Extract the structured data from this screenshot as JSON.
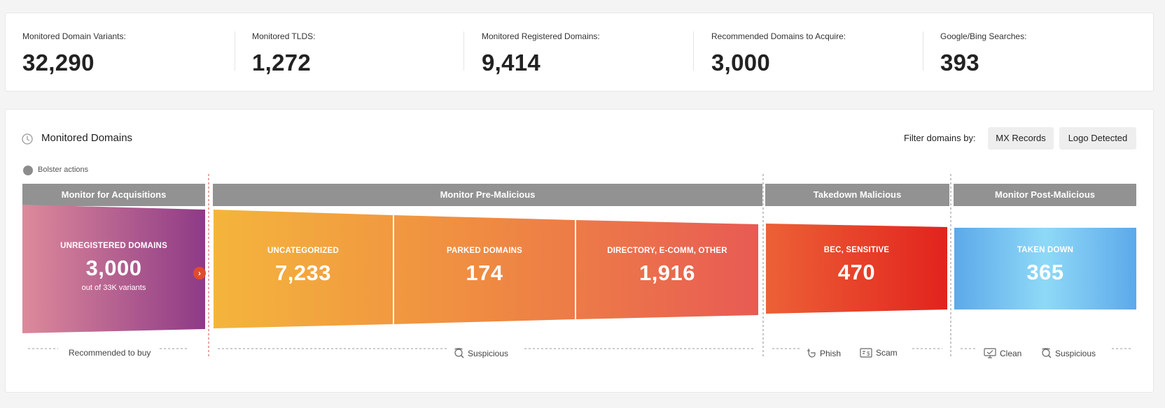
{
  "stats": [
    {
      "label": "Monitored Domain Variants:",
      "value": "32,290"
    },
    {
      "label": "Monitored TLDS:",
      "value": "1,272"
    },
    {
      "label": "Monitored Registered Domains:",
      "value": "9,414"
    },
    {
      "label": "Recommended Domains to Acquire:",
      "value": "3,000"
    },
    {
      "label": "Google/Bing Searches:",
      "value": "393"
    }
  ],
  "panel": {
    "title": "Monitored Domains",
    "filter_label": "Filter domains by:",
    "filters": [
      "MX Records",
      "Logo Detected"
    ],
    "legend_label": "Bolster actions"
  },
  "stages": [
    "Monitor for Acquisitions",
    "Monitor Pre-Malicious",
    "Takedown Malicious",
    "Monitor Post-Malicious"
  ],
  "segments": [
    {
      "label": "UNREGISTERED DOMAINS",
      "value": "3,000",
      "sub": "out of 33K variants"
    },
    {
      "label": "UNCATEGORIZED",
      "value": "7,233"
    },
    {
      "label": "PARKED DOMAINS",
      "value": "174"
    },
    {
      "label": "DIRECTORY, E-COMM, OTHER",
      "value": "1,916"
    },
    {
      "label": "BEC, SENSITIVE",
      "value": "470"
    },
    {
      "label": "TAKEN DOWN",
      "value": "365"
    }
  ],
  "actions": {
    "recommended": "Recommended to buy",
    "suspicious": "Suspicious",
    "phish": "Phish",
    "scam": "Scam",
    "clean": "Clean",
    "post_suspicious": "Suspicious"
  },
  "colors": {
    "stage_header": "#929292",
    "purple_start": "#dd8a9b",
    "purple_end": "#8e3a86",
    "orange_start": "#f4b53c",
    "orange_end": "#e85a54",
    "red_start": "#ec6136",
    "red_end": "#e2231e",
    "blue_edge": "#5ca9ea",
    "blue_center": "#8fd9f7",
    "divider_red": "#d94a3a"
  }
}
